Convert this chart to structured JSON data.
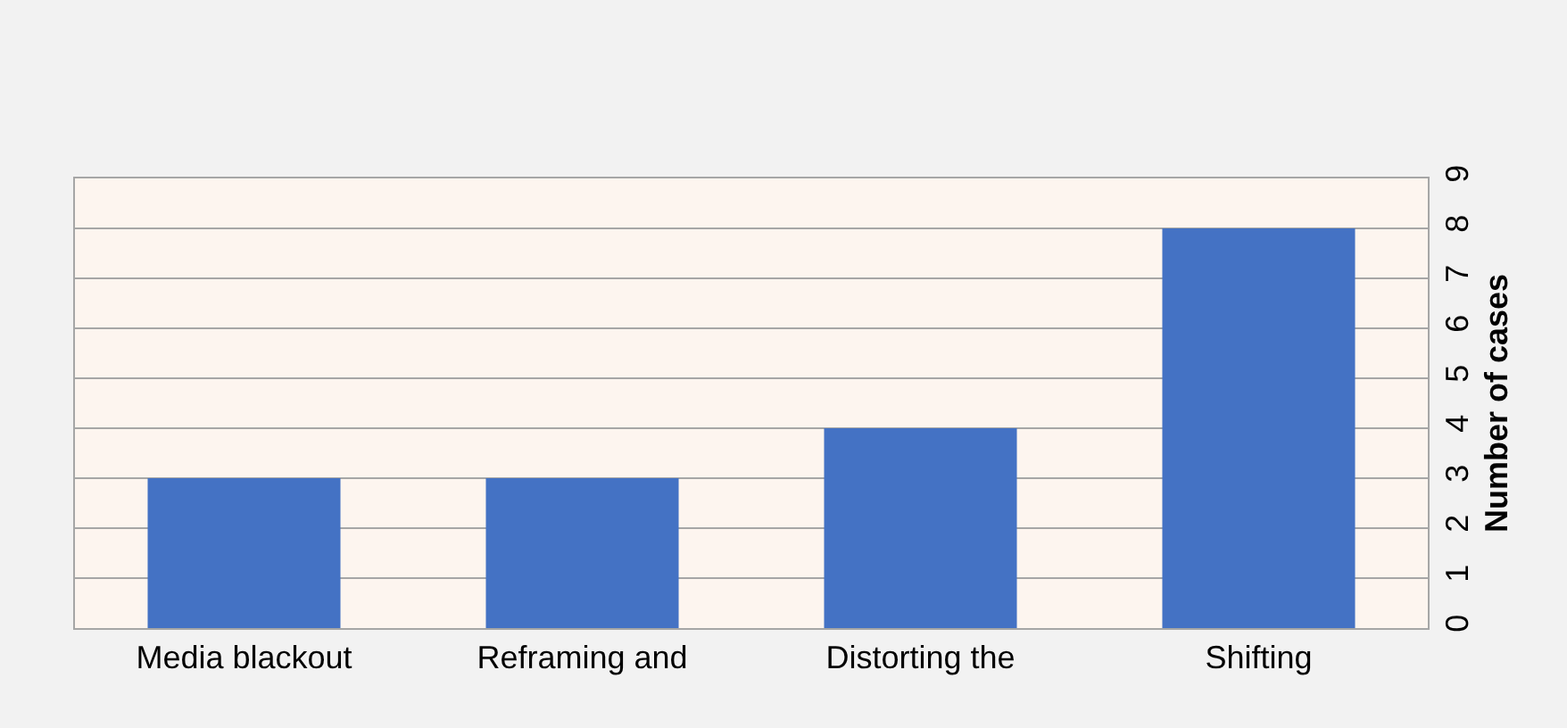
{
  "chart_data": {
    "type": "bar",
    "ylabel": "Number of cases",
    "categories": [
      "Media blackout",
      "Reframing and",
      "Distorting the",
      "Shifting"
    ],
    "values": [
      3,
      3,
      4,
      8
    ],
    "color": "#4472c4",
    "ylim": [
      0,
      9
    ],
    "yticks": [
      0,
      1,
      2,
      3,
      4,
      5,
      6,
      7,
      8,
      9
    ],
    "grid": "y"
  }
}
